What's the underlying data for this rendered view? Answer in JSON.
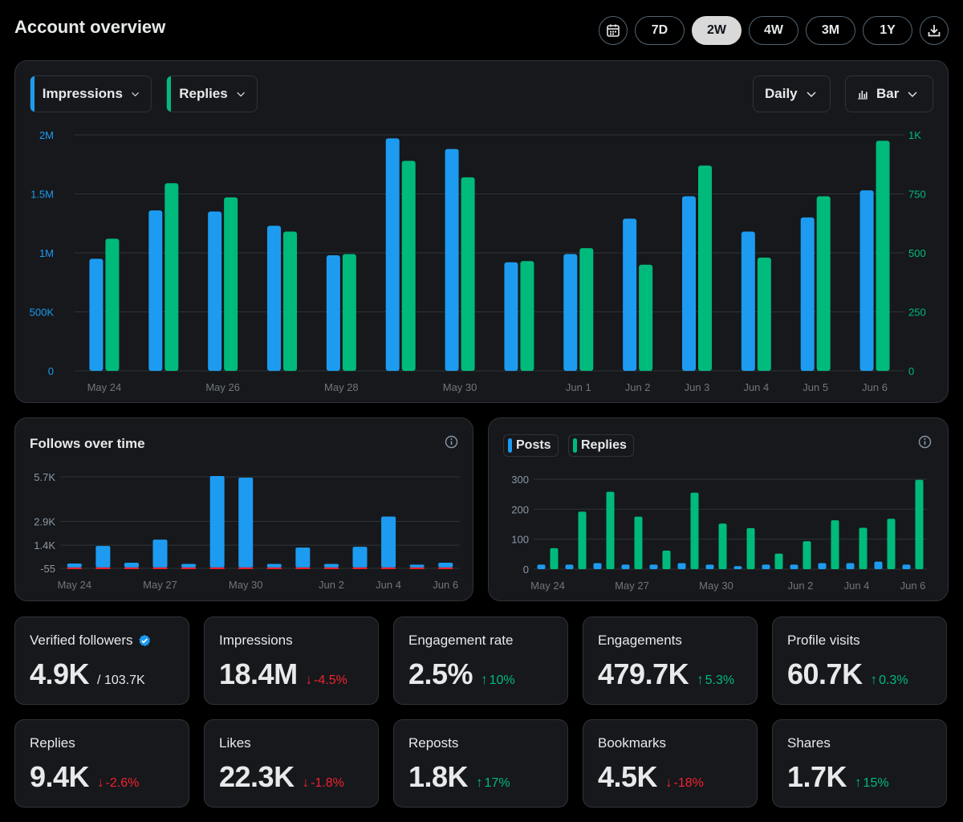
{
  "header": {
    "title": "Account overview",
    "calendar_icon": "calendar-icon",
    "download_icon": "download-icon",
    "ranges": [
      {
        "label": "7D",
        "active": false
      },
      {
        "label": "2W",
        "active": true
      },
      {
        "label": "4W",
        "active": false
      },
      {
        "label": "3M",
        "active": false
      },
      {
        "label": "1Y",
        "active": false
      }
    ]
  },
  "main_chart": {
    "metric_1": {
      "label": "Impressions",
      "color": "#1d9bf0"
    },
    "metric_2": {
      "label": "Replies",
      "color": "#00ba7c"
    },
    "granularity": "Daily",
    "chart_type_label": "Bar",
    "chart_icon": "bar-chart-icon"
  },
  "follows_card": {
    "title": "Follows over time",
    "info_icon": "info-icon"
  },
  "posts_card": {
    "legend_1": "Posts",
    "legend_2": "Replies",
    "info_icon": "info-icon"
  },
  "stats": [
    {
      "label": "Verified followers",
      "value": "4.9K",
      "sub": "/ 103.7K",
      "change": "",
      "direction": "",
      "verified": true
    },
    {
      "label": "Impressions",
      "value": "18.4M",
      "sub": "",
      "change": "-4.5%",
      "direction": "down",
      "verified": false
    },
    {
      "label": "Engagement rate",
      "value": "2.5%",
      "sub": "",
      "change": "10%",
      "direction": "up",
      "verified": false
    },
    {
      "label": "Engagements",
      "value": "479.7K",
      "sub": "",
      "change": "5.3%",
      "direction": "up",
      "verified": false
    },
    {
      "label": "Profile visits",
      "value": "60.7K",
      "sub": "",
      "change": "0.3%",
      "direction": "up",
      "verified": false
    },
    {
      "label": "Replies",
      "value": "9.4K",
      "sub": "",
      "change": "-2.6%",
      "direction": "down",
      "verified": false
    },
    {
      "label": "Likes",
      "value": "22.3K",
      "sub": "",
      "change": "-1.8%",
      "direction": "down",
      "verified": false
    },
    {
      "label": "Reposts",
      "value": "1.8K",
      "sub": "",
      "change": "17%",
      "direction": "up",
      "verified": false
    },
    {
      "label": "Bookmarks",
      "value": "4.5K",
      "sub": "",
      "change": "-18%",
      "direction": "down",
      "verified": false
    },
    {
      "label": "Shares",
      "value": "1.7K",
      "sub": "",
      "change": "15%",
      "direction": "up",
      "verified": false
    }
  ],
  "chart_data": [
    {
      "type": "bar",
      "title": "",
      "categories": [
        "May 24",
        "May 25",
        "May 26",
        "May 27",
        "May 28",
        "May 29",
        "May 30",
        "May 31",
        "Jun 1",
        "Jun 2",
        "Jun 3",
        "Jun 4",
        "Jun 5",
        "Jun 6"
      ],
      "x_tick_labels": [
        "May 24",
        "",
        "May 26",
        "",
        "May 28",
        "",
        "May 30",
        "",
        "Jun 1",
        "Jun 2",
        "Jun 3",
        "Jun 4",
        "Jun 5",
        "Jun 6"
      ],
      "series": [
        {
          "name": "Impressions",
          "axis": "left",
          "color": "#1d9bf0",
          "values": [
            950000,
            1360000,
            1350000,
            1230000,
            980000,
            1970000,
            1880000,
            920000,
            990000,
            1290000,
            1480000,
            1180000,
            1300000,
            1530000
          ]
        },
        {
          "name": "Replies",
          "axis": "right",
          "color": "#00ba7c",
          "values": [
            560,
            795,
            735,
            590,
            495,
            890,
            820,
            465,
            520,
            450,
            870,
            480,
            740,
            975
          ]
        }
      ],
      "ylim_left": [
        0,
        2000000
      ],
      "ylim_right": [
        0,
        1000
      ],
      "y_ticks_left": [
        {
          "v": 0,
          "label": "0"
        },
        {
          "v": 500000,
          "label": "500K"
        },
        {
          "v": 1000000,
          "label": "1M"
        },
        {
          "v": 1500000,
          "label": "1.5M"
        },
        {
          "v": 2000000,
          "label": "2M"
        }
      ],
      "y_ticks_right": [
        {
          "v": 0,
          "label": "0"
        },
        {
          "v": 250,
          "label": "250"
        },
        {
          "v": 500,
          "label": "500"
        },
        {
          "v": 750,
          "label": "750"
        },
        {
          "v": 1000,
          "label": "1K"
        }
      ],
      "grid": true,
      "legend": "top-left"
    },
    {
      "type": "bar",
      "title": "Follows over time",
      "categories": [
        "May 24",
        "May 25",
        "May 26",
        "May 27",
        "May 28",
        "May 29",
        "May 30",
        "May 31",
        "Jun 1",
        "Jun 2",
        "Jun 3",
        "Jun 4",
        "Jun 5",
        "Jun 6"
      ],
      "x_tick_labels": [
        "May 24",
        "",
        "",
        "May 27",
        "",
        "",
        "May 30",
        "",
        "",
        "Jun 2",
        "",
        "Jun 4",
        "",
        "Jun 6"
      ],
      "series": [
        {
          "name": "",
          "color": "#1d9bf0",
          "values": [
            250,
            1350,
            300,
            1750,
            220,
            5750,
            5650,
            220,
            1250,
            220,
            1300,
            3200,
            180,
            300
          ]
        },
        {
          "name": "",
          "color": "#f4212e",
          "values": [
            -40,
            -40,
            -40,
            -40,
            -40,
            -55,
            -55,
            -40,
            -40,
            -40,
            -40,
            -40,
            -40,
            -40
          ]
        }
      ],
      "ylim": [
        -55,
        5700
      ],
      "y_ticks": [
        {
          "v": -55,
          "label": "-55"
        },
        {
          "v": 1400,
          "label": "1.4K"
        },
        {
          "v": 2900,
          "label": "2.9K"
        },
        {
          "v": 5700,
          "label": "5.7K"
        }
      ],
      "grid": true
    },
    {
      "type": "bar",
      "title": "",
      "categories": [
        "May 24",
        "May 25",
        "May 26",
        "May 27",
        "May 28",
        "May 29",
        "May 30",
        "May 31",
        "Jun 1",
        "Jun 2",
        "Jun 3",
        "Jun 4",
        "Jun 5",
        "Jun 6"
      ],
      "x_tick_labels": [
        "May 24",
        "",
        "",
        "May 27",
        "",
        "",
        "May 30",
        "",
        "",
        "Jun 2",
        "",
        "Jun 4",
        "",
        "Jun 6"
      ],
      "series": [
        {
          "name": "Posts",
          "color": "#1d9bf0",
          "values": [
            15,
            15,
            20,
            15,
            15,
            20,
            15,
            10,
            15,
            15,
            20,
            20,
            25,
            15
          ]
        },
        {
          "name": "Replies",
          "color": "#00ba7c",
          "values": [
            70,
            192,
            258,
            175,
            62,
            255,
            152,
            137,
            52,
            93,
            163,
            138,
            168,
            298
          ]
        }
      ],
      "ylim": [
        0,
        300
      ],
      "y_ticks": [
        {
          "v": 0,
          "label": "0"
        },
        {
          "v": 100,
          "label": "100"
        },
        {
          "v": 200,
          "label": "200"
        },
        {
          "v": 300,
          "label": "300"
        }
      ],
      "grid": true,
      "legend": "top-left"
    }
  ]
}
